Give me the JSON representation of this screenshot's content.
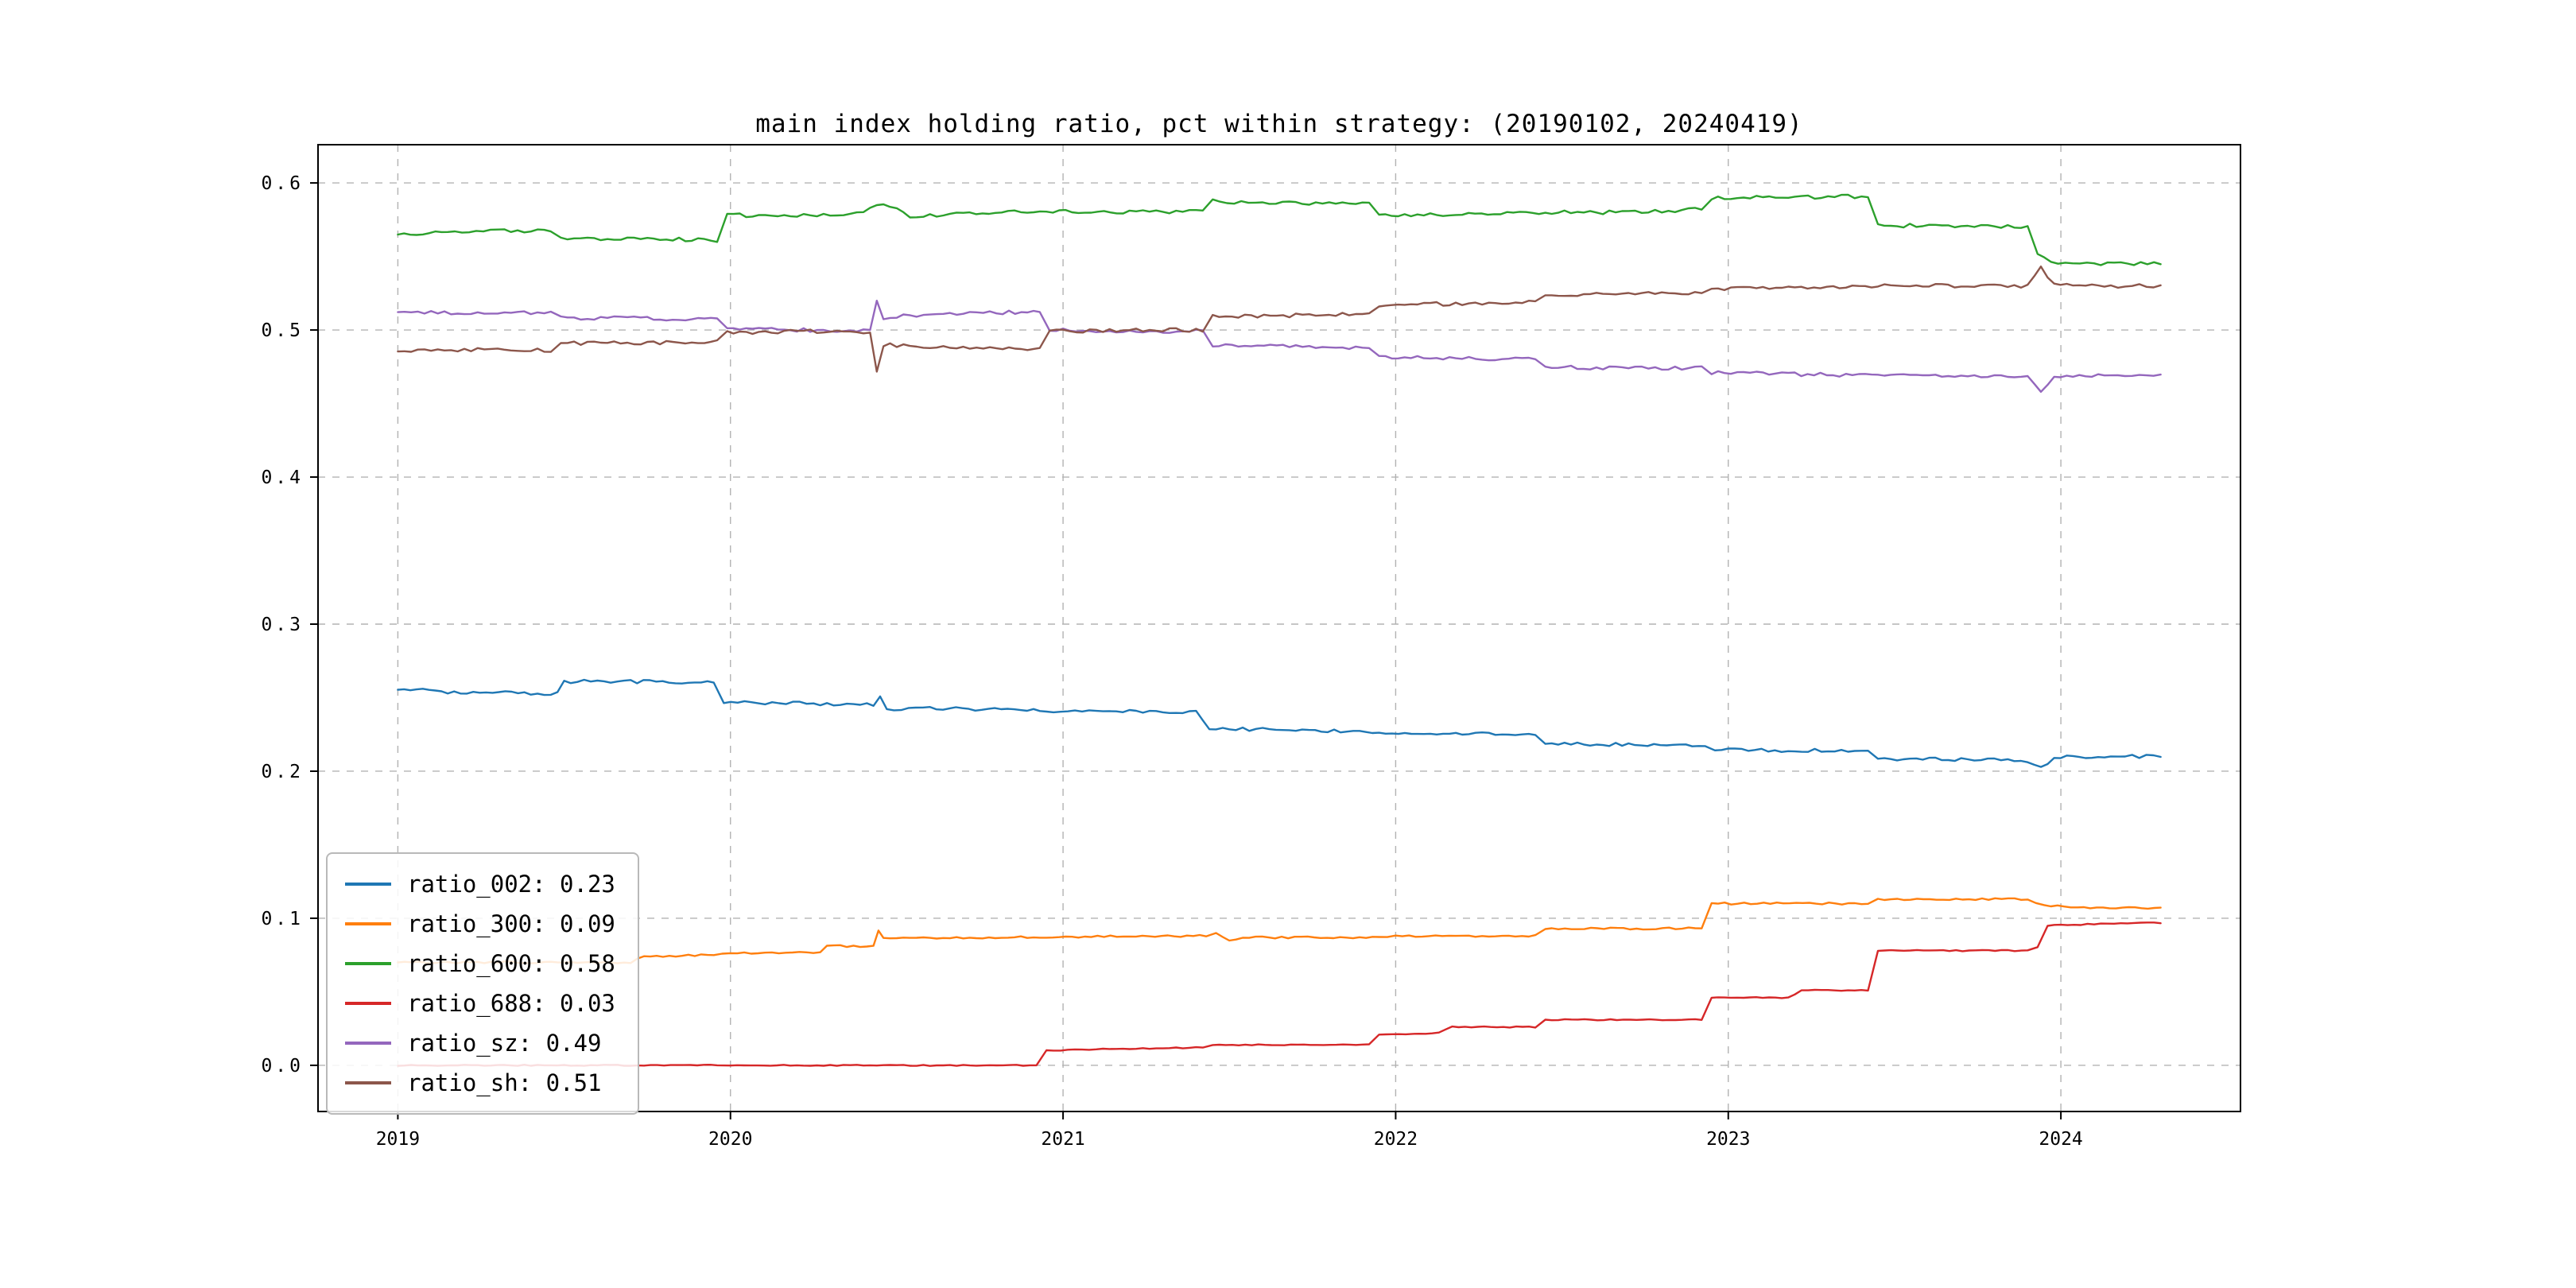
{
  "chart_data": {
    "type": "line",
    "title": "main index holding ratio, pct within strategy: (20190102, 20240419)",
    "xlabel": "",
    "ylabel": "",
    "xlim": [
      2018.76,
      2024.54
    ],
    "ylim": [
      -0.0314,
      0.626
    ],
    "x_ticks": [
      2019,
      2020,
      2021,
      2022,
      2023,
      2024
    ],
    "x_tick_labels": [
      "2019",
      "2020",
      "2021",
      "2022",
      "2023",
      "2024"
    ],
    "y_ticks": [
      0.0,
      0.1,
      0.2,
      0.3,
      0.4,
      0.5,
      0.6
    ],
    "y_tick_labels": [
      "0.0",
      "0.1",
      "0.2",
      "0.3",
      "0.4",
      "0.5",
      "0.6"
    ],
    "grid": true,
    "grid_style": "dashed",
    "legend_position": "lower left",
    "series": [
      {
        "name": "ratio_002",
        "legend_label": "ratio_002: 0.23",
        "color": "#1f77b4",
        "noise": 0.0012,
        "points": [
          [
            2019.0,
            0.256
          ],
          [
            2019.15,
            0.254
          ],
          [
            2019.4,
            0.253
          ],
          [
            2019.48,
            0.253
          ],
          [
            2019.5,
            0.261
          ],
          [
            2019.7,
            0.261
          ],
          [
            2019.95,
            0.26
          ],
          [
            2019.98,
            0.247
          ],
          [
            2020.25,
            0.246
          ],
          [
            2020.43,
            0.245
          ],
          [
            2020.45,
            0.251
          ],
          [
            2020.47,
            0.242
          ],
          [
            2020.6,
            0.243
          ],
          [
            2020.95,
            0.241
          ],
          [
            2021.1,
            0.241
          ],
          [
            2021.4,
            0.24
          ],
          [
            2021.44,
            0.229
          ],
          [
            2021.7,
            0.228
          ],
          [
            2021.93,
            0.227
          ],
          [
            2021.97,
            0.226
          ],
          [
            2022.2,
            0.226
          ],
          [
            2022.42,
            0.225
          ],
          [
            2022.45,
            0.219
          ],
          [
            2022.7,
            0.218
          ],
          [
            2022.93,
            0.218
          ],
          [
            2022.96,
            0.215
          ],
          [
            2023.2,
            0.214
          ],
          [
            2023.42,
            0.214
          ],
          [
            2023.45,
            0.208
          ],
          [
            2023.7,
            0.208
          ],
          [
            2023.9,
            0.207
          ],
          [
            2023.94,
            0.202
          ],
          [
            2023.98,
            0.21
          ],
          [
            2024.15,
            0.21
          ],
          [
            2024.3,
            0.21
          ]
        ]
      },
      {
        "name": "ratio_300",
        "legend_label": "ratio_300: 0.09",
        "color": "#ff7f0e",
        "noise": 0.0007,
        "points": [
          [
            2019.0,
            0.07
          ],
          [
            2019.4,
            0.07
          ],
          [
            2019.7,
            0.07
          ],
          [
            2019.74,
            0.074
          ],
          [
            2019.95,
            0.075
          ],
          [
            2020.0,
            0.076
          ],
          [
            2020.27,
            0.077
          ],
          [
            2020.29,
            0.081
          ],
          [
            2020.43,
            0.081
          ],
          [
            2020.445,
            0.091
          ],
          [
            2020.46,
            0.086
          ],
          [
            2020.7,
            0.087
          ],
          [
            2020.95,
            0.087
          ],
          [
            2021.2,
            0.088
          ],
          [
            2021.43,
            0.088
          ],
          [
            2021.46,
            0.09
          ],
          [
            2021.5,
            0.085
          ],
          [
            2021.54,
            0.087
          ],
          [
            2021.95,
            0.087
          ],
          [
            2022.0,
            0.088
          ],
          [
            2022.42,
            0.088
          ],
          [
            2022.45,
            0.093
          ],
          [
            2022.92,
            0.093
          ],
          [
            2022.95,
            0.11
          ],
          [
            2023.42,
            0.11
          ],
          [
            2023.45,
            0.113
          ],
          [
            2023.9,
            0.113
          ],
          [
            2023.95,
            0.109
          ],
          [
            2024.05,
            0.107
          ],
          [
            2024.3,
            0.107
          ]
        ]
      },
      {
        "name": "ratio_600",
        "legend_label": "ratio_600: 0.58",
        "color": "#2ca02c",
        "noise": 0.0013,
        "points": [
          [
            2019.0,
            0.565
          ],
          [
            2019.15,
            0.566
          ],
          [
            2019.3,
            0.568
          ],
          [
            2019.46,
            0.567
          ],
          [
            2019.49,
            0.562
          ],
          [
            2019.75,
            0.562
          ],
          [
            2019.96,
            0.561
          ],
          [
            2019.99,
            0.578
          ],
          [
            2020.2,
            0.578
          ],
          [
            2020.4,
            0.579
          ],
          [
            2020.44,
            0.585
          ],
          [
            2020.5,
            0.583
          ],
          [
            2020.54,
            0.577
          ],
          [
            2020.7,
            0.579
          ],
          [
            2020.95,
            0.581
          ],
          [
            2021.2,
            0.58
          ],
          [
            2021.42,
            0.581
          ],
          [
            2021.45,
            0.588
          ],
          [
            2021.6,
            0.586
          ],
          [
            2021.92,
            0.587
          ],
          [
            2021.95,
            0.578
          ],
          [
            2022.2,
            0.579
          ],
          [
            2022.45,
            0.58
          ],
          [
            2022.7,
            0.58
          ],
          [
            2022.92,
            0.582
          ],
          [
            2022.95,
            0.59
          ],
          [
            2023.2,
            0.59
          ],
          [
            2023.42,
            0.591
          ],
          [
            2023.45,
            0.571
          ],
          [
            2023.7,
            0.571
          ],
          [
            2023.9,
            0.57
          ],
          [
            2023.93,
            0.552
          ],
          [
            2023.97,
            0.546
          ],
          [
            2024.1,
            0.545
          ],
          [
            2024.3,
            0.545
          ]
        ]
      },
      {
        "name": "ratio_688",
        "legend_label": "ratio_688: 0.03",
        "color": "#d62728",
        "noise": 0.0004,
        "points": [
          [
            2019.0,
            0.0
          ],
          [
            2019.5,
            0.0
          ],
          [
            2020.0,
            0.0
          ],
          [
            2020.5,
            0.0
          ],
          [
            2020.92,
            0.0
          ],
          [
            2020.95,
            0.01
          ],
          [
            2021.1,
            0.011
          ],
          [
            2021.42,
            0.012
          ],
          [
            2021.45,
            0.014
          ],
          [
            2021.92,
            0.014
          ],
          [
            2021.95,
            0.021
          ],
          [
            2022.13,
            0.022
          ],
          [
            2022.17,
            0.026
          ],
          [
            2022.42,
            0.026
          ],
          [
            2022.45,
            0.031
          ],
          [
            2022.92,
            0.031
          ],
          [
            2022.95,
            0.046
          ],
          [
            2023.18,
            0.046
          ],
          [
            2023.22,
            0.051
          ],
          [
            2023.42,
            0.051
          ],
          [
            2023.45,
            0.078
          ],
          [
            2023.9,
            0.078
          ],
          [
            2023.93,
            0.08
          ],
          [
            2023.96,
            0.095
          ],
          [
            2024.1,
            0.096
          ],
          [
            2024.3,
            0.097
          ]
        ]
      },
      {
        "name": "ratio_sz",
        "legend_label": "ratio_sz: 0.49",
        "color": "#9467bd",
        "noise": 0.0013,
        "points": [
          [
            2019.0,
            0.512
          ],
          [
            2019.3,
            0.511
          ],
          [
            2019.46,
            0.512
          ],
          [
            2019.49,
            0.508
          ],
          [
            2019.75,
            0.508
          ],
          [
            2019.96,
            0.507
          ],
          [
            2019.99,
            0.501
          ],
          [
            2020.2,
            0.5
          ],
          [
            2020.42,
            0.5
          ],
          [
            2020.44,
            0.519
          ],
          [
            2020.46,
            0.508
          ],
          [
            2020.6,
            0.511
          ],
          [
            2020.8,
            0.512
          ],
          [
            2020.93,
            0.512
          ],
          [
            2020.96,
            0.5
          ],
          [
            2021.2,
            0.499
          ],
          [
            2021.42,
            0.499
          ],
          [
            2021.45,
            0.49
          ],
          [
            2021.7,
            0.489
          ],
          [
            2021.92,
            0.488
          ],
          [
            2021.95,
            0.482
          ],
          [
            2022.2,
            0.481
          ],
          [
            2022.42,
            0.48
          ],
          [
            2022.45,
            0.475
          ],
          [
            2022.7,
            0.474
          ],
          [
            2022.92,
            0.474
          ],
          [
            2022.95,
            0.471
          ],
          [
            2023.2,
            0.47
          ],
          [
            2023.45,
            0.469
          ],
          [
            2023.7,
            0.469
          ],
          [
            2023.9,
            0.469
          ],
          [
            2023.94,
            0.459
          ],
          [
            2023.98,
            0.468
          ],
          [
            2024.15,
            0.469
          ],
          [
            2024.3,
            0.469
          ]
        ]
      },
      {
        "name": "ratio_sh",
        "legend_label": "ratio_sh: 0.51",
        "color": "#8c564b",
        "noise": 0.0013,
        "points": [
          [
            2019.0,
            0.486
          ],
          [
            2019.3,
            0.487
          ],
          [
            2019.46,
            0.486
          ],
          [
            2019.49,
            0.491
          ],
          [
            2019.75,
            0.491
          ],
          [
            2019.96,
            0.492
          ],
          [
            2019.99,
            0.498
          ],
          [
            2020.2,
            0.499
          ],
          [
            2020.42,
            0.499
          ],
          [
            2020.44,
            0.471
          ],
          [
            2020.46,
            0.49
          ],
          [
            2020.6,
            0.488
          ],
          [
            2020.8,
            0.487
          ],
          [
            2020.93,
            0.487
          ],
          [
            2020.96,
            0.499
          ],
          [
            2021.2,
            0.5
          ],
          [
            2021.42,
            0.5
          ],
          [
            2021.45,
            0.509
          ],
          [
            2021.7,
            0.51
          ],
          [
            2021.92,
            0.511
          ],
          [
            2021.95,
            0.517
          ],
          [
            2022.2,
            0.518
          ],
          [
            2022.42,
            0.519
          ],
          [
            2022.45,
            0.524
          ],
          [
            2022.7,
            0.525
          ],
          [
            2022.92,
            0.525
          ],
          [
            2022.95,
            0.528
          ],
          [
            2023.2,
            0.529
          ],
          [
            2023.45,
            0.53
          ],
          [
            2023.7,
            0.53
          ],
          [
            2023.9,
            0.53
          ],
          [
            2023.94,
            0.543
          ],
          [
            2023.98,
            0.531
          ],
          [
            2024.15,
            0.53
          ],
          [
            2024.3,
            0.53
          ]
        ]
      }
    ]
  }
}
